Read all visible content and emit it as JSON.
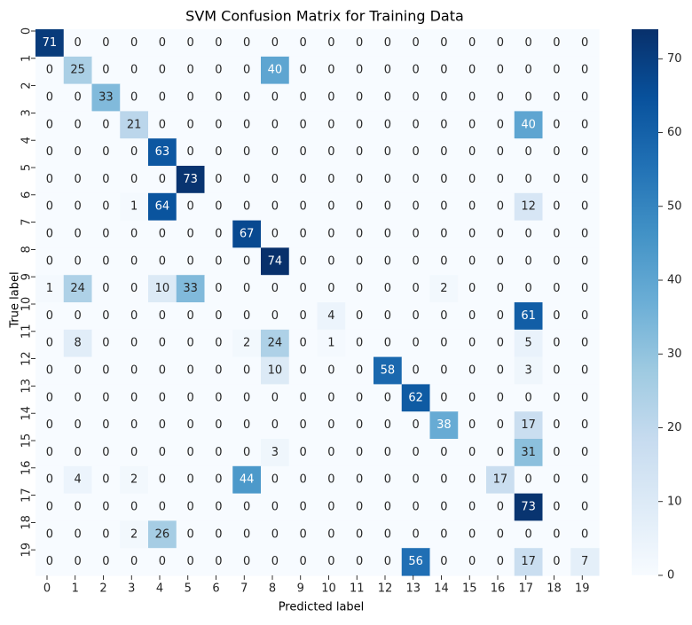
{
  "chart_data": {
    "type": "heatmap",
    "title": "SVM Confusion Matrix for Training Data",
    "xlabel": "Predicted label",
    "ylabel": "True label",
    "x_ticks": [
      "0",
      "1",
      "2",
      "3",
      "4",
      "5",
      "6",
      "7",
      "8",
      "9",
      "10",
      "11",
      "12",
      "13",
      "14",
      "15",
      "16",
      "17",
      "18",
      "19"
    ],
    "y_ticks": [
      "0",
      "1",
      "2",
      "3",
      "4",
      "5",
      "6",
      "7",
      "8",
      "9",
      "10",
      "11",
      "12",
      "13",
      "14",
      "15",
      "16",
      "17",
      "18",
      "19"
    ],
    "matrix": [
      [
        71,
        0,
        0,
        0,
        0,
        0,
        0,
        0,
        0,
        0,
        0,
        0,
        0,
        0,
        0,
        0,
        0,
        0,
        0,
        0
      ],
      [
        0,
        25,
        0,
        0,
        0,
        0,
        0,
        0,
        40,
        0,
        0,
        0,
        0,
        0,
        0,
        0,
        0,
        0,
        0,
        0
      ],
      [
        0,
        0,
        33,
        0,
        0,
        0,
        0,
        0,
        0,
        0,
        0,
        0,
        0,
        0,
        0,
        0,
        0,
        0,
        0,
        0
      ],
      [
        0,
        0,
        0,
        21,
        0,
        0,
        0,
        0,
        0,
        0,
        0,
        0,
        0,
        0,
        0,
        0,
        0,
        40,
        0,
        0
      ],
      [
        0,
        0,
        0,
        0,
        63,
        0,
        0,
        0,
        0,
        0,
        0,
        0,
        0,
        0,
        0,
        0,
        0,
        0,
        0,
        0
      ],
      [
        0,
        0,
        0,
        0,
        0,
        73,
        0,
        0,
        0,
        0,
        0,
        0,
        0,
        0,
        0,
        0,
        0,
        0,
        0,
        0
      ],
      [
        0,
        0,
        0,
        1,
        64,
        0,
        0,
        0,
        0,
        0,
        0,
        0,
        0,
        0,
        0,
        0,
        0,
        12,
        0,
        0
      ],
      [
        0,
        0,
        0,
        0,
        0,
        0,
        0,
        67,
        0,
        0,
        0,
        0,
        0,
        0,
        0,
        0,
        0,
        0,
        0,
        0
      ],
      [
        0,
        0,
        0,
        0,
        0,
        0,
        0,
        0,
        74,
        0,
        0,
        0,
        0,
        0,
        0,
        0,
        0,
        0,
        0,
        0
      ],
      [
        1,
        24,
        0,
        0,
        10,
        33,
        0,
        0,
        0,
        0,
        0,
        0,
        0,
        0,
        2,
        0,
        0,
        0,
        0,
        0
      ],
      [
        0,
        0,
        0,
        0,
        0,
        0,
        0,
        0,
        0,
        0,
        4,
        0,
        0,
        0,
        0,
        0,
        0,
        61,
        0,
        0
      ],
      [
        0,
        8,
        0,
        0,
        0,
        0,
        0,
        2,
        24,
        0,
        1,
        0,
        0,
        0,
        0,
        0,
        0,
        5,
        0,
        0
      ],
      [
        0,
        0,
        0,
        0,
        0,
        0,
        0,
        0,
        10,
        0,
        0,
        0,
        58,
        0,
        0,
        0,
        0,
        3,
        0,
        0
      ],
      [
        0,
        0,
        0,
        0,
        0,
        0,
        0,
        0,
        0,
        0,
        0,
        0,
        0,
        62,
        0,
        0,
        0,
        0,
        0,
        0
      ],
      [
        0,
        0,
        0,
        0,
        0,
        0,
        0,
        0,
        0,
        0,
        0,
        0,
        0,
        0,
        38,
        0,
        0,
        17,
        0,
        0
      ],
      [
        0,
        0,
        0,
        0,
        0,
        0,
        0,
        0,
        3,
        0,
        0,
        0,
        0,
        0,
        0,
        0,
        0,
        31,
        0,
        0
      ],
      [
        0,
        4,
        0,
        2,
        0,
        0,
        0,
        44,
        0,
        0,
        0,
        0,
        0,
        0,
        0,
        0,
        17,
        0,
        0,
        0
      ],
      [
        0,
        0,
        0,
        0,
        0,
        0,
        0,
        0,
        0,
        0,
        0,
        0,
        0,
        0,
        0,
        0,
        0,
        73,
        0,
        0
      ],
      [
        0,
        0,
        0,
        2,
        26,
        0,
        0,
        0,
        0,
        0,
        0,
        0,
        0,
        0,
        0,
        0,
        0,
        0,
        0,
        0
      ],
      [
        0,
        0,
        0,
        0,
        0,
        0,
        0,
        0,
        0,
        0,
        0,
        0,
        0,
        56,
        0,
        0,
        0,
        17,
        0,
        7
      ]
    ],
    "colorbar": {
      "colormap": "Blues",
      "range": [
        0,
        74
      ],
      "ticks": [
        0,
        10,
        20,
        30,
        40,
        50,
        60,
        70
      ]
    },
    "colors": {
      "low": "#f7fbff",
      "high": "#08306b",
      "dark_text": "#262626",
      "light_text": "#ffffff"
    }
  }
}
